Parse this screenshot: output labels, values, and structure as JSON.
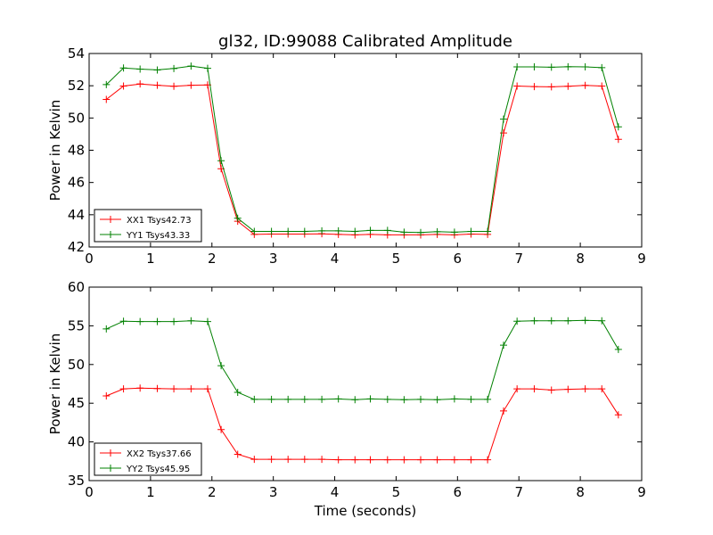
{
  "chart_data": {
    "title": "gl32, ID:99088 Calibrated Amplitude",
    "xlabel": "Time (seconds)",
    "panels": [
      {
        "type": "line",
        "ylabel": "Power in Kelvin",
        "xlim": [
          0,
          9
        ],
        "ylim": [
          42,
          54
        ],
        "xticks": [
          0,
          1,
          2,
          3,
          4,
          5,
          6,
          7,
          8,
          9
        ],
        "yticks": [
          42,
          44,
          46,
          48,
          50,
          52,
          54
        ],
        "show_xlabel": false,
        "legend_position": "lower-left",
        "x": [
          0.28,
          0.56,
          0.83,
          1.11,
          1.38,
          1.66,
          1.93,
          2.15,
          2.42,
          2.69,
          2.97,
          3.24,
          3.51,
          3.79,
          4.06,
          4.33,
          4.58,
          4.86,
          5.13,
          5.4,
          5.67,
          5.95,
          6.22,
          6.49,
          6.75,
          6.97,
          7.25,
          7.53,
          7.8,
          8.08,
          8.35,
          8.62
        ],
        "series": [
          {
            "name": "XX1 Tsys42.73",
            "color": "#ff0000",
            "values": [
              51.15,
              51.98,
              52.11,
              52.03,
              51.97,
              52.03,
              52.05,
              46.85,
              43.6,
              42.78,
              42.8,
              42.8,
              42.8,
              42.82,
              42.78,
              42.75,
              42.78,
              42.75,
              42.75,
              42.75,
              42.78,
              42.75,
              42.8,
              42.78,
              49.07,
              51.98,
              51.95,
              51.93,
              51.97,
              52.02,
              51.98,
              48.68
            ]
          },
          {
            "name": "YY1 Tsys43.33",
            "color": "#008000",
            "values": [
              52.07,
              53.1,
              53.03,
              52.98,
              53.07,
              53.22,
              53.08,
              47.35,
              43.78,
              42.97,
              42.97,
              42.97,
              42.97,
              43.0,
              43.0,
              42.97,
              43.03,
              43.03,
              42.92,
              42.9,
              42.95,
              42.92,
              42.97,
              42.97,
              49.93,
              53.17,
              53.17,
              53.15,
              53.18,
              53.17,
              53.12,
              49.45
            ]
          }
        ]
      },
      {
        "type": "line",
        "ylabel": "Power in Kelvin",
        "xlim": [
          0,
          9
        ],
        "ylim": [
          35,
          60
        ],
        "xticks": [
          0,
          1,
          2,
          3,
          4,
          5,
          6,
          7,
          8,
          9
        ],
        "yticks": [
          35,
          40,
          45,
          50,
          55,
          60
        ],
        "show_xlabel": true,
        "legend_position": "lower-left",
        "x": [
          0.28,
          0.56,
          0.83,
          1.11,
          1.38,
          1.66,
          1.93,
          2.15,
          2.42,
          2.69,
          2.97,
          3.24,
          3.51,
          3.79,
          4.06,
          4.33,
          4.58,
          4.86,
          5.13,
          5.4,
          5.67,
          5.95,
          6.22,
          6.49,
          6.75,
          6.97,
          7.25,
          7.53,
          7.8,
          8.08,
          8.35,
          8.62
        ],
        "series": [
          {
            "name": "XX2 Tsys37.66",
            "color": "#ff0000",
            "values": [
              45.95,
              46.85,
              46.95,
              46.9,
              46.85,
              46.85,
              46.85,
              41.6,
              38.4,
              37.75,
              37.75,
              37.75,
              37.75,
              37.75,
              37.7,
              37.7,
              37.7,
              37.7,
              37.7,
              37.7,
              37.7,
              37.7,
              37.7,
              37.7,
              44.0,
              46.85,
              46.85,
              46.7,
              46.8,
              46.85,
              46.85,
              43.5
            ]
          },
          {
            "name": "YY2 Tsys45.95",
            "color": "#008000",
            "values": [
              54.6,
              55.6,
              55.55,
              55.55,
              55.55,
              55.65,
              55.55,
              49.85,
              46.4,
              45.5,
              45.5,
              45.5,
              45.5,
              45.5,
              45.55,
              45.45,
              45.55,
              45.5,
              45.45,
              45.5,
              45.45,
              45.55,
              45.5,
              45.5,
              52.5,
              55.6,
              55.65,
              55.65,
              55.65,
              55.7,
              55.65,
              51.95
            ]
          }
        ]
      }
    ]
  }
}
